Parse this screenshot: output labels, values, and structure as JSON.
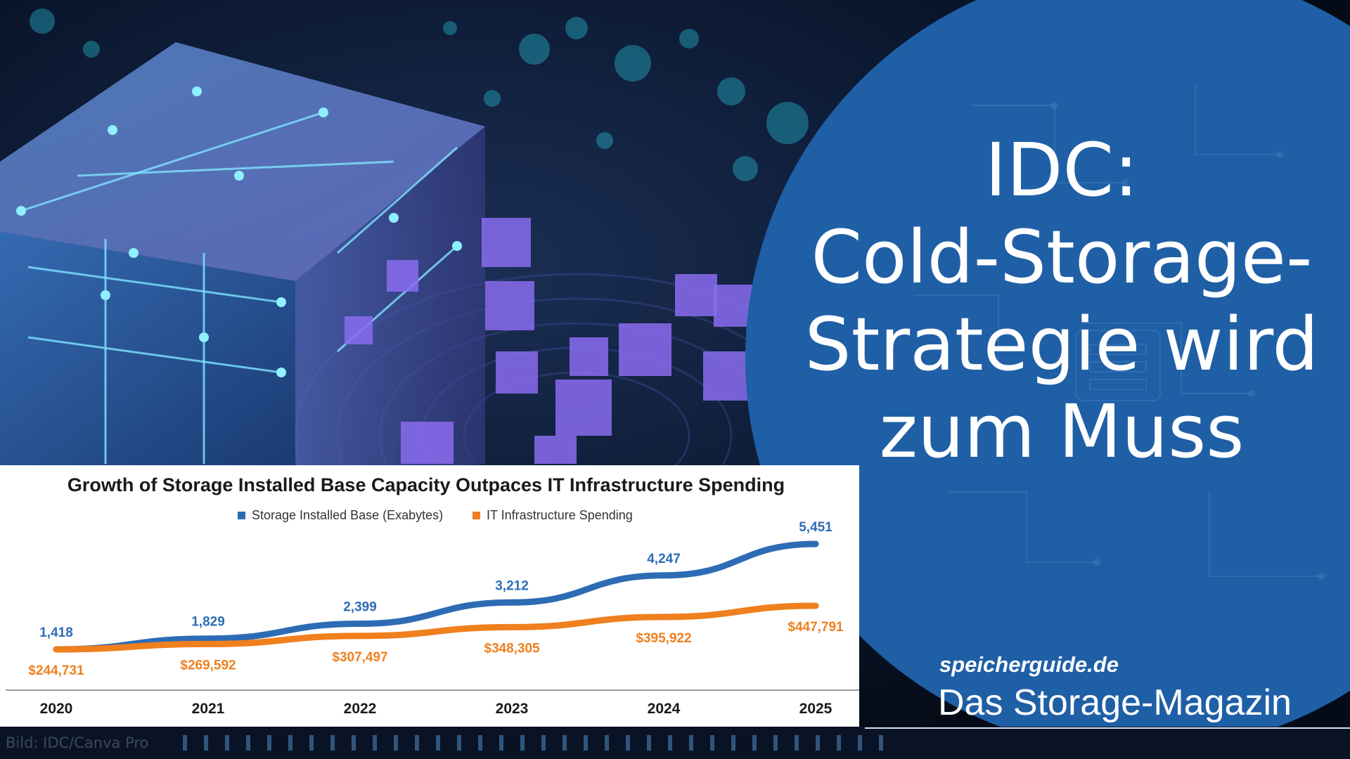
{
  "headline": {
    "lines": [
      "IDC:",
      "Cold-Storage-",
      "Strategie wird",
      "zum Muss"
    ]
  },
  "brand": {
    "site": "speicherguide.de",
    "tagline": "Das Storage-Magazin"
  },
  "credit": "Bild: IDC/Canva Pro",
  "colors": {
    "circle_blue": "#1f5fa6",
    "storage_blue": "#2d6cb5",
    "spending_orange": "#f07f1e",
    "title_text": "#1a1a1a"
  },
  "chart_data": {
    "type": "line",
    "title": "Growth of Storage Installed Base Capacity Outpaces IT Infrastructure Spending",
    "legend_position": "top",
    "categories": [
      "2020",
      "2021",
      "2022",
      "2023",
      "2024",
      "2025"
    ],
    "series": [
      {
        "name": "Storage Installed Base (Exabytes)",
        "color": "#2d6cb5",
        "values": [
          1418,
          1829,
          2399,
          3212,
          4247,
          5451
        ],
        "labels": [
          "1,418",
          "1,829",
          "2,399",
          "3,212",
          "4,247",
          "5,451"
        ]
      },
      {
        "name": "IT Infrastructure Spending",
        "color": "#f07f1e",
        "values": [
          244731,
          269592,
          307497,
          348305,
          395922,
          447791
        ],
        "labels": [
          "$244,731",
          "$269,592",
          "$307,497",
          "$348,305",
          "$395,922",
          "$447,791"
        ]
      }
    ],
    "grid": false
  }
}
